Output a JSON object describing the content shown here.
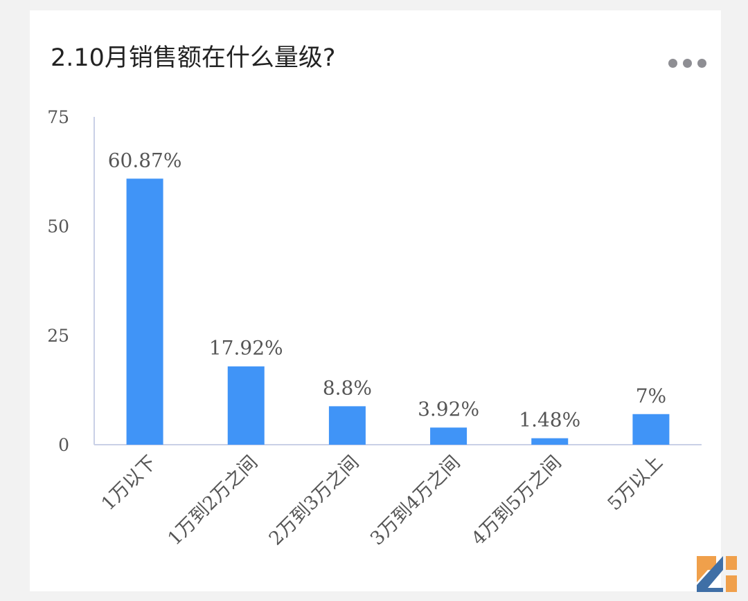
{
  "title": "2.10月销售额在什么量级?",
  "more_icon": "more-horizontal-icon",
  "logo_icon": "brand-logo-icon",
  "colors": {
    "bar": "#4094f7",
    "axis": "#c9d0e6",
    "text": "#555555",
    "title": "#222222",
    "logo_orange": "#f0a04b",
    "logo_blue": "#3f6fa6"
  },
  "chart_data": {
    "type": "bar",
    "categories": [
      "1万以下",
      "1万到2万之间",
      "2万到3万之间",
      "3万到4万之间",
      "4万到5万之间",
      "5万以上"
    ],
    "values": [
      60.87,
      17.92,
      8.8,
      3.92,
      1.48,
      7
    ],
    "value_labels": [
      "60.87%",
      "17.92%",
      "8.8%",
      "3.92%",
      "1.48%",
      "7%"
    ],
    "yticks": [
      "0",
      "25",
      "50",
      "75"
    ],
    "ylim": [
      0,
      75
    ],
    "grid": false,
    "legend": "none"
  }
}
